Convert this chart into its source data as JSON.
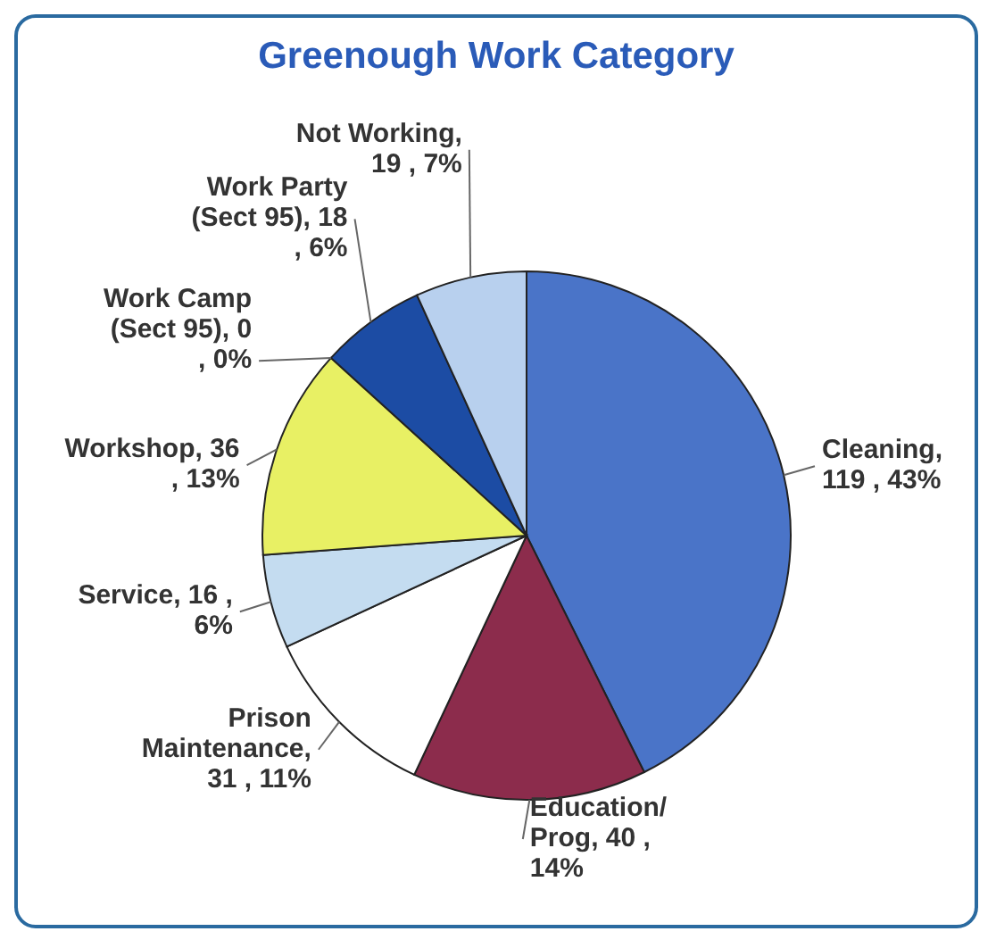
{
  "chart_data": {
    "type": "pie",
    "title": "Greenough Work Category",
    "categories": [
      "Cleaning",
      "Education/ Prog",
      "Prison Maintenance",
      "Service",
      "Workshop",
      "Work Camp (Sect 95)",
      "Work Party (Sect 95)",
      "Not Working"
    ],
    "values": [
      119,
      40,
      31,
      16,
      36,
      0,
      18,
      19
    ],
    "value_labels": [
      ", 119 , 43%",
      ", 40 , 14%",
      ", 31 , 11%",
      ", 16 , 6%",
      ", 36 , 13%",
      ", 0 , 0%",
      ", 18 , 6%",
      ", 19 , 7%"
    ],
    "colors": [
      "#4a74c8",
      "#8c2c4c",
      "#ffffff",
      "#c4dcf0",
      "#e8f064",
      "#8ab4e0",
      "#1c4ca4",
      "#b8d0ee"
    ]
  }
}
